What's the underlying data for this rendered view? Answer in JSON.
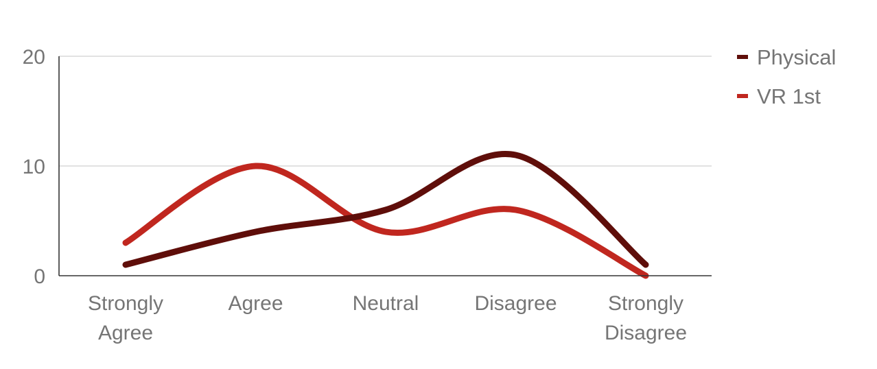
{
  "chart_data": {
    "type": "line",
    "smooth": true,
    "title": "",
    "xlabel": "",
    "ylabel": "",
    "categories": [
      [
        "Strongly",
        "Agree"
      ],
      [
        "Agree"
      ],
      [
        "Neutral"
      ],
      [
        "Disagree"
      ],
      [
        "Strongly",
        "Disagree"
      ]
    ],
    "ylim": [
      0,
      20
    ],
    "yticks": [
      0,
      10,
      20
    ],
    "grid": true,
    "legend_position": "right",
    "series": [
      {
        "name": "Physical",
        "color": "#5f0e0a",
        "values": [
          1,
          4,
          6,
          11,
          1
        ]
      },
      {
        "name": "VR 1st",
        "color": "#c0271f",
        "values": [
          3,
          10,
          4,
          6,
          0
        ]
      }
    ]
  }
}
